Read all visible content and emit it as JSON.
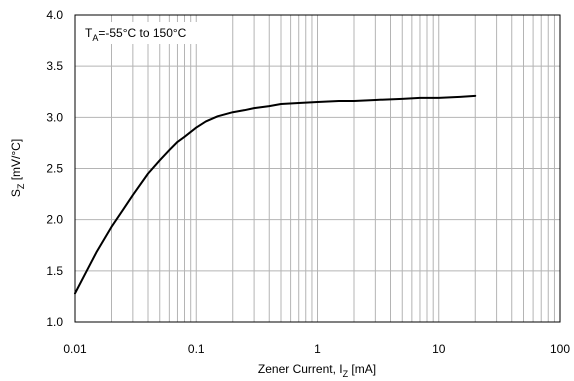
{
  "chart_data": {
    "type": "line",
    "x_scale": "log",
    "xlim": [
      0.01,
      100
    ],
    "ylim": [
      1.0,
      4.0
    ],
    "xticks": [
      0.01,
      0.1,
      1,
      10,
      100
    ],
    "xtick_labels": [
      "0.01",
      "0.1",
      "1",
      "10",
      "100"
    ],
    "yticks": [
      1.0,
      1.5,
      2.0,
      2.5,
      3.0,
      3.5,
      4.0
    ],
    "ytick_labels": [
      "1.0",
      "1.5",
      "2.0",
      "2.5",
      "3.0",
      "3.5",
      "4.0"
    ],
    "grid": true,
    "xlabel": {
      "main": "Zener Current, I",
      "sub": "Z",
      "unit": " [mA]"
    },
    "ylabel": {
      "main": "S",
      "sub": "Z",
      "unit": " [mV/°C]"
    },
    "annotation": {
      "main": "T",
      "sub": "A",
      "rest": "=-55°C to 150°C"
    },
    "series": [
      {
        "x": [
          0.01,
          0.0125,
          0.015,
          0.02,
          0.025,
          0.03,
          0.04,
          0.05,
          0.06,
          0.07,
          0.08,
          0.1,
          0.12,
          0.15,
          0.2,
          0.25,
          0.3,
          0.4,
          0.5,
          0.7,
          1,
          1.5,
          2,
          3,
          5,
          7,
          10,
          15,
          20
        ],
        "y": [
          1.28,
          1.5,
          1.68,
          1.93,
          2.1,
          2.24,
          2.45,
          2.58,
          2.68,
          2.76,
          2.81,
          2.9,
          2.96,
          3.01,
          3.05,
          3.07,
          3.09,
          3.11,
          3.13,
          3.14,
          3.15,
          3.16,
          3.16,
          3.17,
          3.18,
          3.19,
          3.19,
          3.2,
          3.21
        ],
        "color": "#000000"
      }
    ]
  }
}
